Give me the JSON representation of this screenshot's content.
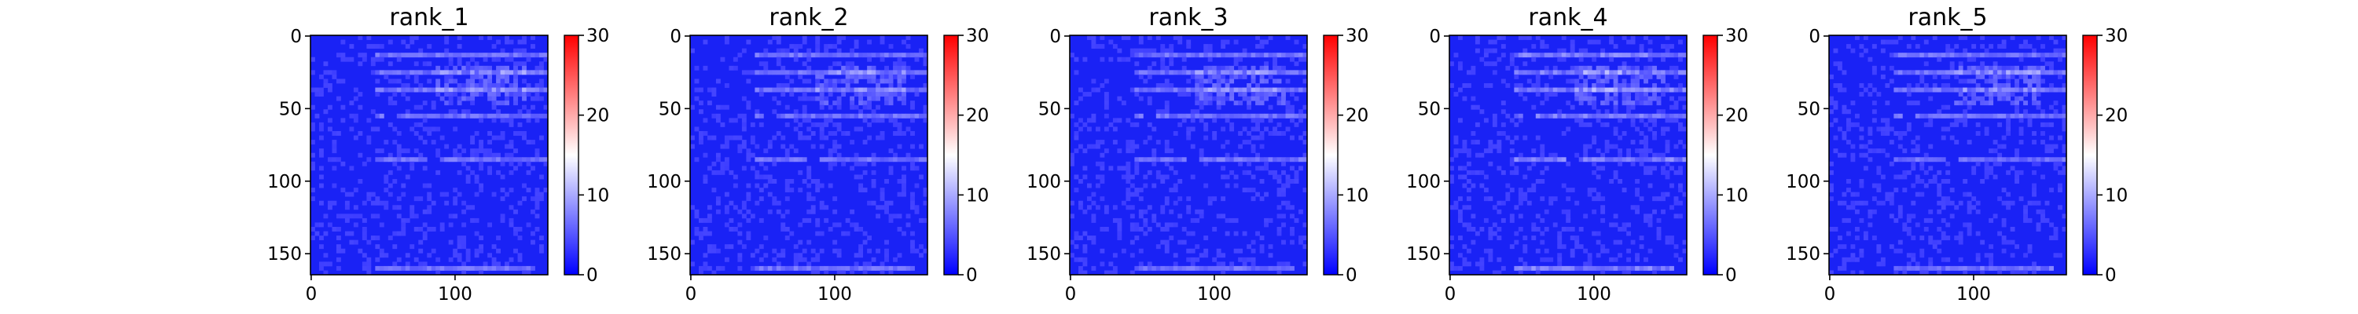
{
  "colors": {
    "cmap_low": "#0000ff",
    "cmap_mid": "#ffffff",
    "cmap_high": "#ff0000",
    "heatmap_base": "#1a22f5"
  },
  "chart_data": [
    {
      "type": "heatmap",
      "title": "rank_1",
      "matrix_size": 165,
      "xticks": [
        0,
        100
      ],
      "yticks": [
        0,
        50,
        100,
        150
      ],
      "colorbar": {
        "cmap": "bwr",
        "vmin": 0,
        "vmax": 30,
        "ticks": [
          0,
          10,
          20,
          30
        ]
      },
      "value_summary": {
        "typical": 3,
        "diagonal": 1,
        "band_max": 8
      }
    },
    {
      "type": "heatmap",
      "title": "rank_2",
      "matrix_size": 165,
      "xticks": [
        0,
        100
      ],
      "yticks": [
        0,
        50,
        100,
        150
      ],
      "colorbar": {
        "cmap": "bwr",
        "vmin": 0,
        "vmax": 30,
        "ticks": [
          0,
          10,
          20,
          30
        ]
      },
      "value_summary": {
        "typical": 3,
        "diagonal": 1,
        "band_max": 8
      }
    },
    {
      "type": "heatmap",
      "title": "rank_3",
      "matrix_size": 165,
      "xticks": [
        0,
        100
      ],
      "yticks": [
        0,
        50,
        100,
        150
      ],
      "colorbar": {
        "cmap": "bwr",
        "vmin": 0,
        "vmax": 30,
        "ticks": [
          0,
          10,
          20,
          30
        ]
      },
      "value_summary": {
        "typical": 3,
        "diagonal": 1,
        "band_max": 8
      }
    },
    {
      "type": "heatmap",
      "title": "rank_4",
      "matrix_size": 165,
      "xticks": [
        0,
        100
      ],
      "yticks": [
        0,
        50,
        100,
        150
      ],
      "colorbar": {
        "cmap": "bwr",
        "vmin": 0,
        "vmax": 30,
        "ticks": [
          0,
          10,
          20,
          30
        ]
      },
      "value_summary": {
        "typical": 3,
        "diagonal": 1,
        "band_max": 9
      }
    },
    {
      "type": "heatmap",
      "title": "rank_5",
      "matrix_size": 165,
      "xticks": [
        0,
        100
      ],
      "yticks": [
        0,
        50,
        100,
        150
      ],
      "colorbar": {
        "cmap": "bwr",
        "vmin": 0,
        "vmax": 30,
        "ticks": [
          0,
          10,
          20,
          30
        ]
      },
      "value_summary": {
        "typical": 3,
        "diagonal": 1,
        "band_max": 8
      }
    }
  ]
}
